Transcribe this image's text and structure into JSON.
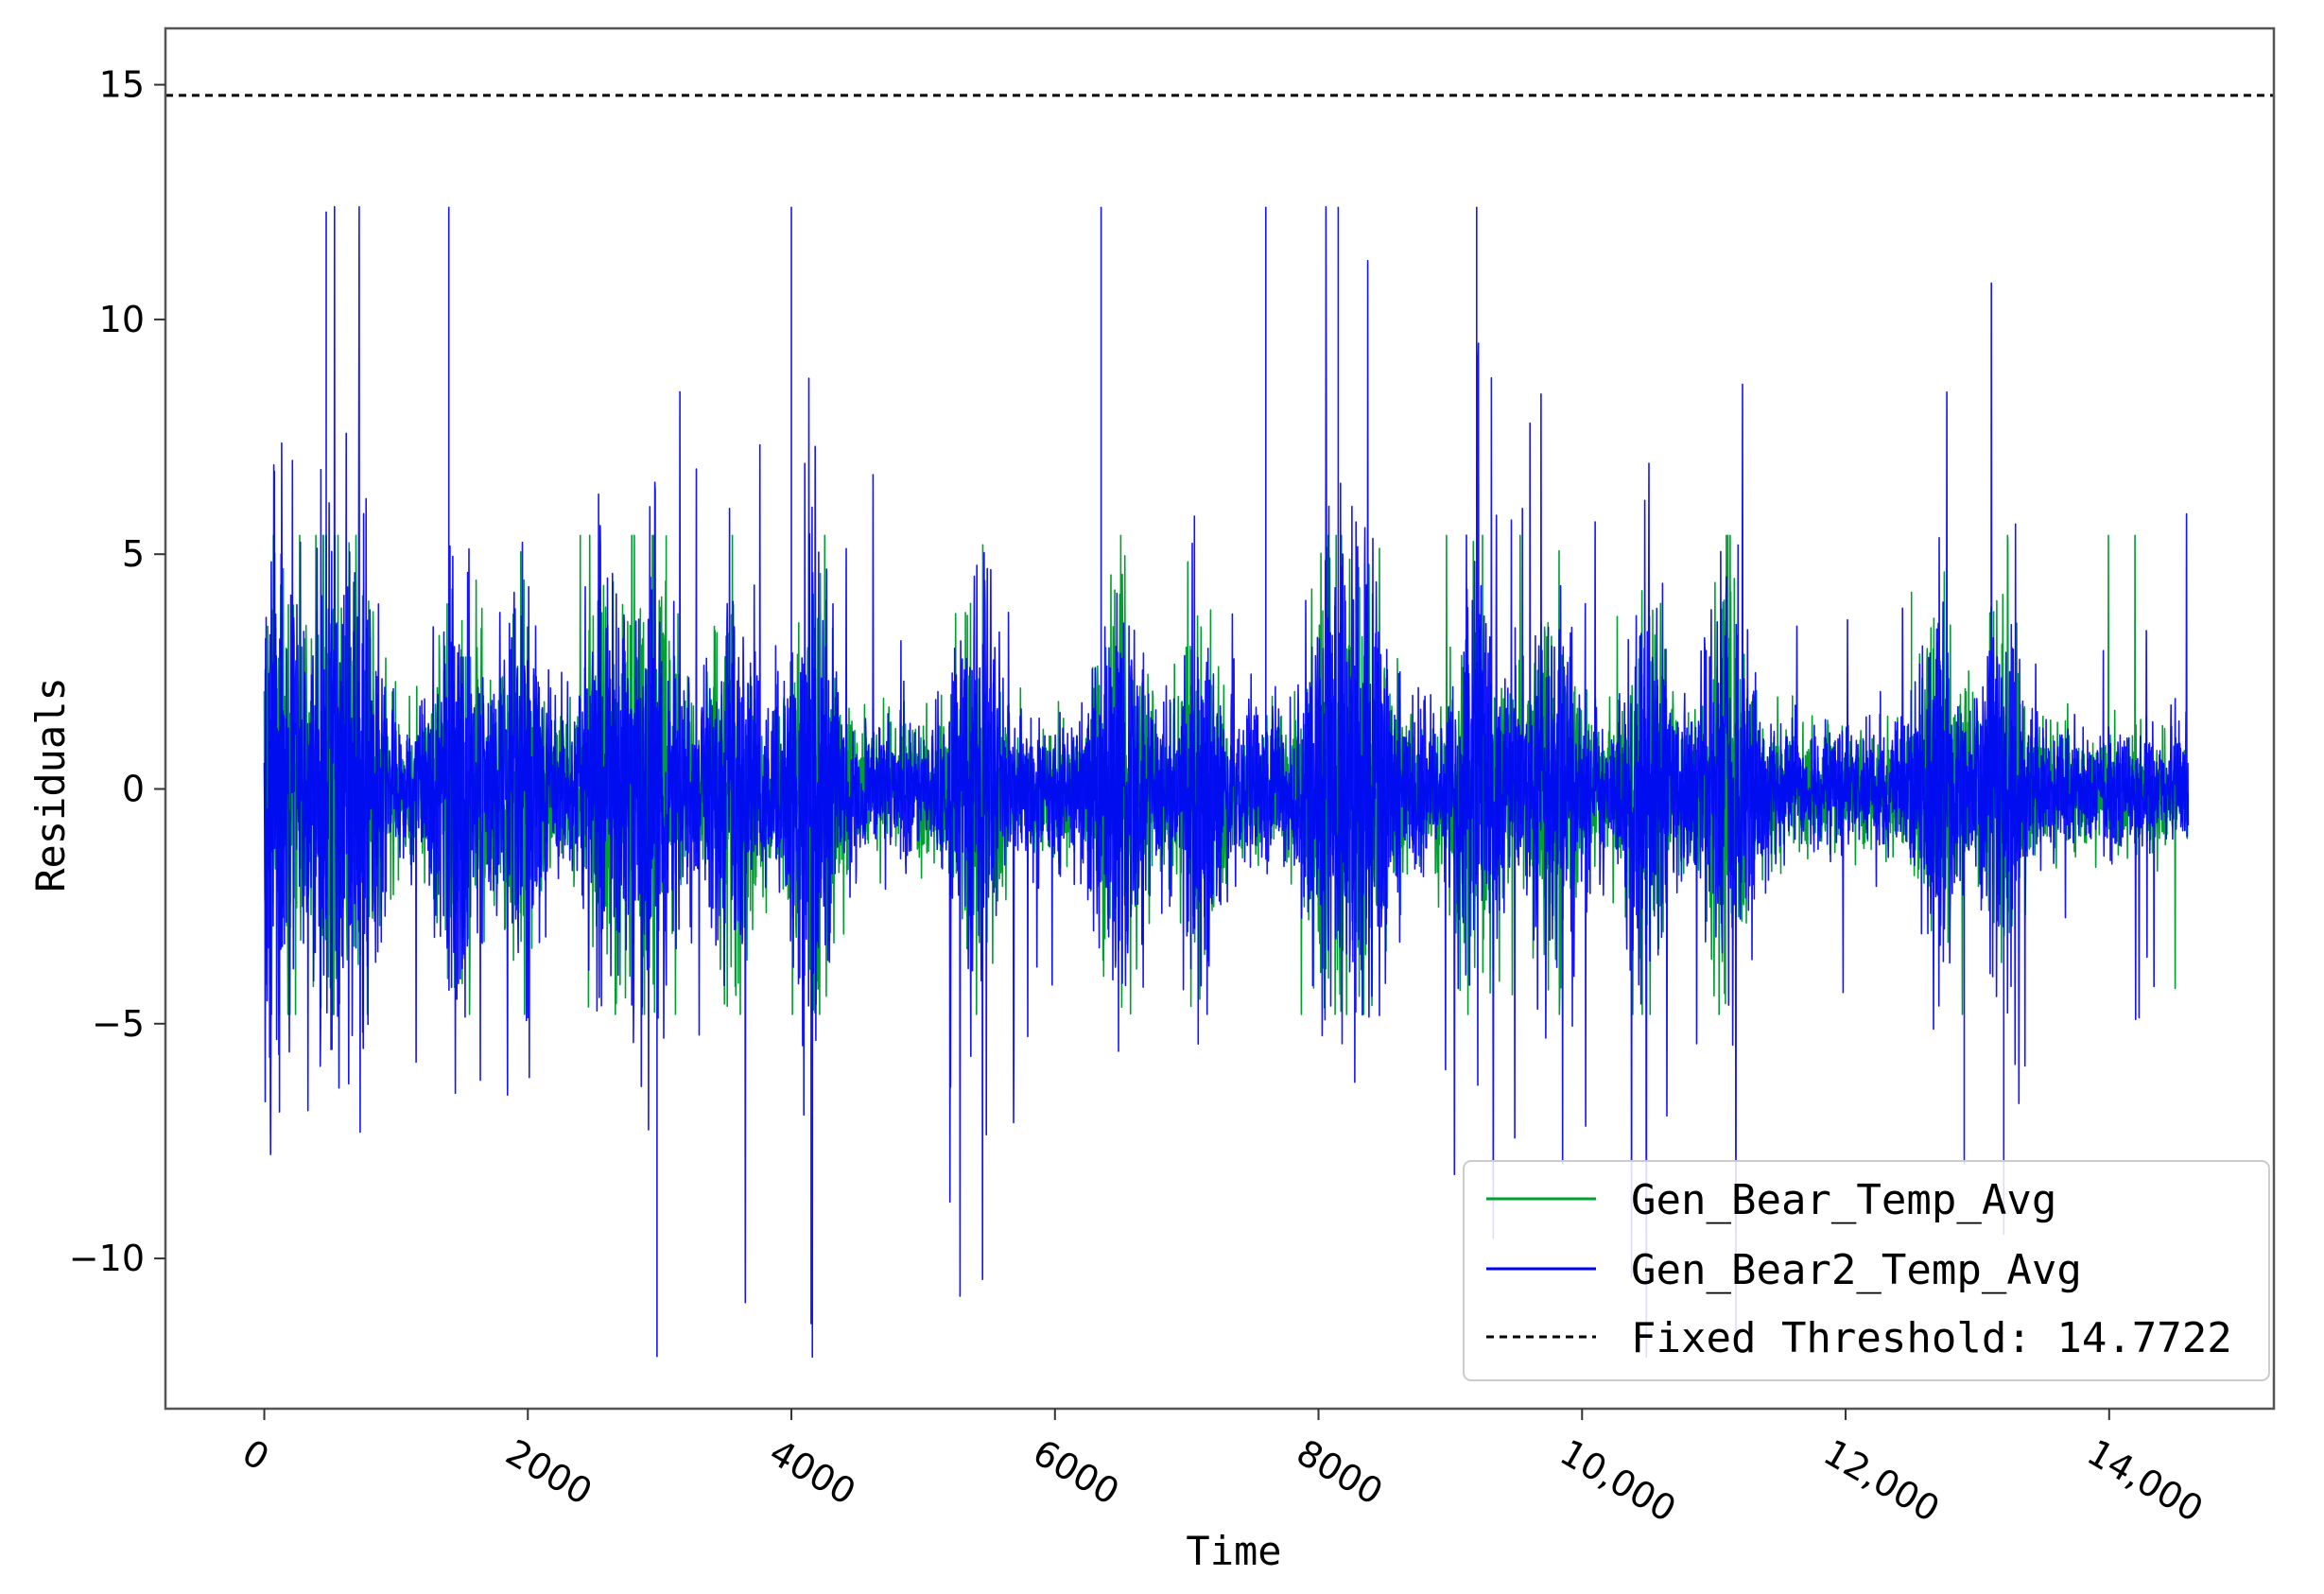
{
  "chart_data": {
    "type": "line",
    "xlabel": "Time",
    "ylabel": "Residuals",
    "xlim": [
      -750,
      15250
    ],
    "ylim": [
      -13.2,
      16.2
    ],
    "x_ticks": [
      {
        "value": 0,
        "label": "0"
      },
      {
        "value": 2000,
        "label": "2000"
      },
      {
        "value": 4000,
        "label": "4000"
      },
      {
        "value": 6000,
        "label": "6000"
      },
      {
        "value": 8000,
        "label": "8000"
      },
      {
        "value": 10000,
        "label": "10,000"
      },
      {
        "value": 12000,
        "label": "12,000"
      },
      {
        "value": 14000,
        "label": "14,000"
      }
    ],
    "y_ticks": [
      {
        "value": -10,
        "label": "−10"
      },
      {
        "value": -5,
        "label": "−5"
      },
      {
        "value": 0,
        "label": "0"
      },
      {
        "value": 5,
        "label": "5"
      },
      {
        "value": 10,
        "label": "10"
      },
      {
        "value": 15,
        "label": "15"
      }
    ],
    "x_tick_rotation_deg": 30,
    "grid": false,
    "legend_position": "bottom-right",
    "x_range": [
      0,
      14600
    ],
    "series": [
      {
        "name": "Gen_Bear_Temp_Avg",
        "color": "#00a030",
        "style": "solid",
        "description_values": {
          "baseline_band": [
            -3.5,
            3.0
          ],
          "max": 5.4,
          "min": -4.8
        },
        "sample_peaks": [
          {
            "x": 1500,
            "y": 3.6
          },
          {
            "x": 3050,
            "y": 5.4
          },
          {
            "x": 12500,
            "y": 4.2
          }
        ]
      },
      {
        "name": "Gen_Bear2_Temp_Avg",
        "color": "#0000ff",
        "style": "solid",
        "description_values": {
          "baseline_band": [
            -3.0,
            3.0
          ],
          "max": 12.4,
          "min": -12.1
        },
        "sample_peaks": [
          {
            "x": 470,
            "y": 12.3
          },
          {
            "x": 1400,
            "y": 12.4
          },
          {
            "x": 4000,
            "y": 12.4
          },
          {
            "x": 6350,
            "y": 12.4
          },
          {
            "x": 7600,
            "y": 12.4
          },
          {
            "x": 8150,
            "y": 12.4
          },
          {
            "x": 9200,
            "y": 12.4
          },
          {
            "x": 2980,
            "y": -12.1
          },
          {
            "x": 4150,
            "y": -11.4
          },
          {
            "x": 12900,
            "y": -8.0
          },
          {
            "x": 13200,
            "y": -9.5
          }
        ]
      },
      {
        "name": "Fixed Threshold: 14.7722",
        "color": "#000000",
        "style": "dashed",
        "value": 14.7722
      }
    ]
  }
}
